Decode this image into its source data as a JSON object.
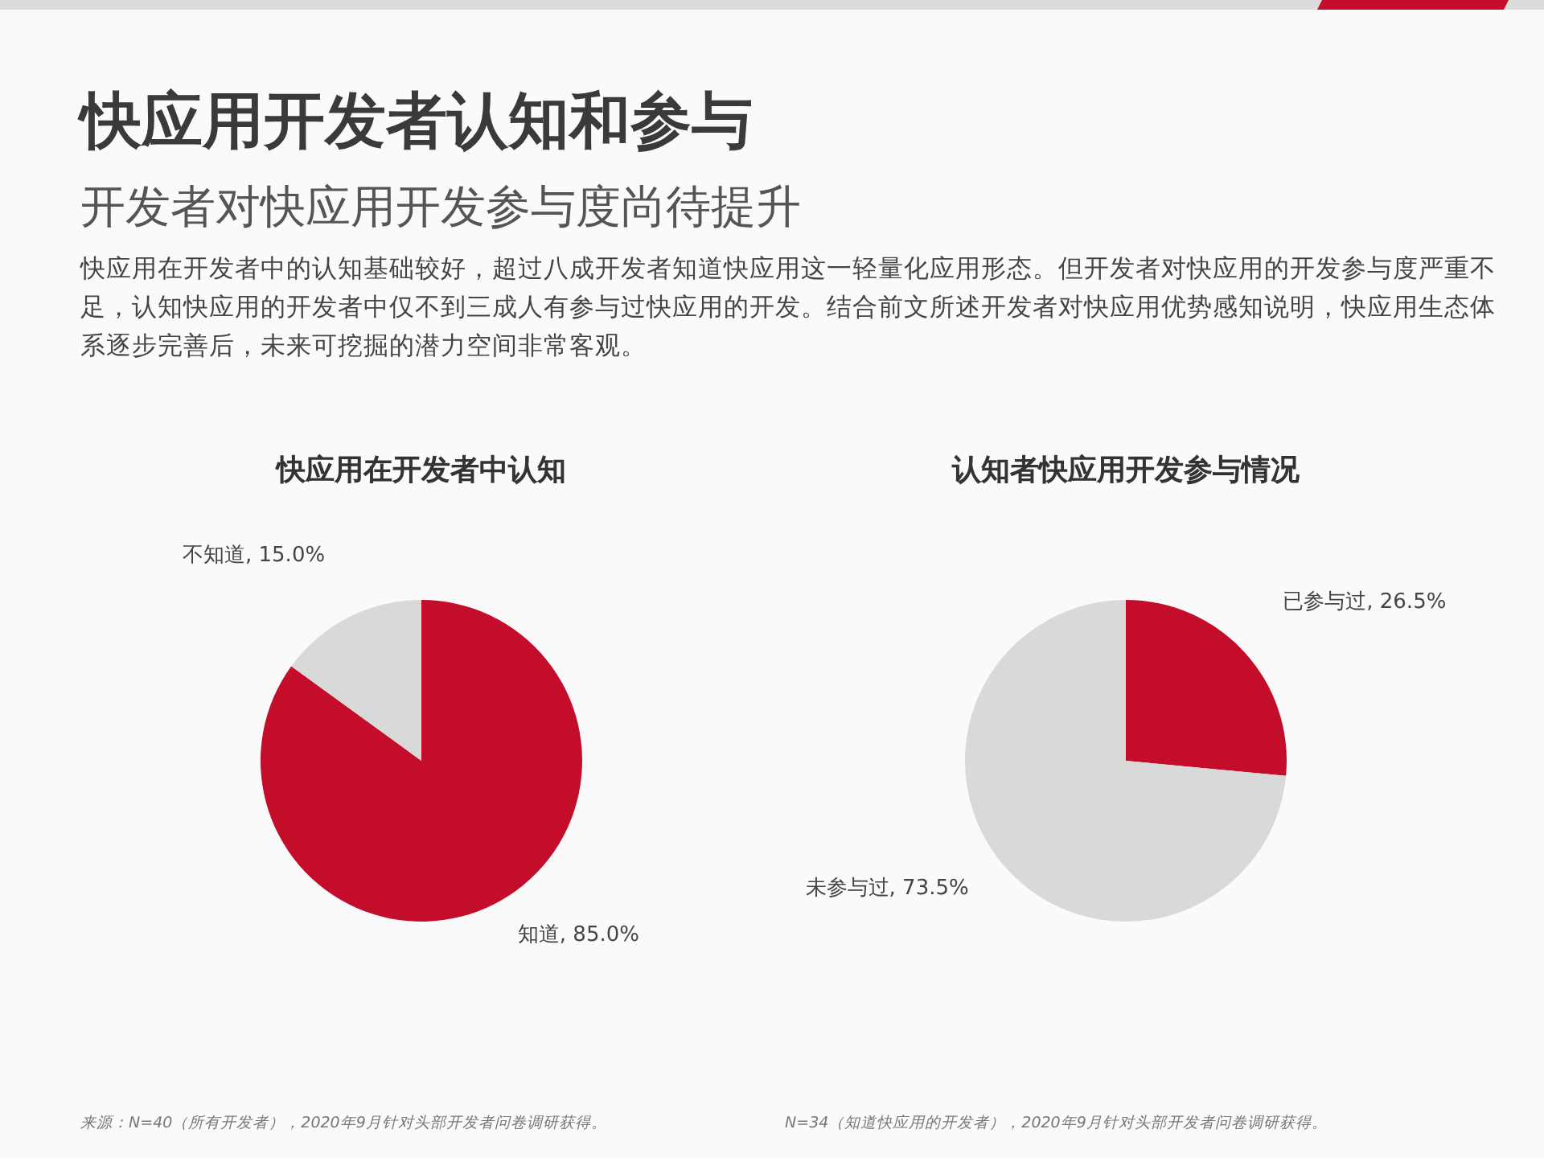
{
  "chart_data": [
    {
      "type": "other",
      "title": "快应用开发者认知和参与",
      "subtitle": "开发者对快应用开发参与度尚待提升",
      "annotations": [
        "快应用在开发者中的认知基础较好，超过八成开发者知道快应用这一轻量化应用形态。但开发者对快应用的开发参与度严重不足，认知快应用的开发者中仅不到三成人有参与过快应用的开发。结合前文所述开发者对快应用优势感知说明，快应用生态体系逐步完善后，未来可挖掘的潜力空间非常客观。"
      ]
    },
    {
      "type": "pie",
      "title": "快应用在开发者中认知",
      "categories": [
        "知道",
        "不知道"
      ],
      "values": [
        85.0,
        15.0
      ],
      "value_labels": [
        "85.0%",
        "15.0%"
      ],
      "colors": [
        "#c40d2b",
        "#d9d9d9"
      ],
      "annotations": [
        "来源：N=40（所有开发者），2020年9月针对头部开发者问卷调研获得。"
      ]
    },
    {
      "type": "pie",
      "title": "认知者快应用开发参与情况",
      "categories": [
        "已参与过",
        "未参与过"
      ],
      "values": [
        26.5,
        73.5
      ],
      "value_labels": [
        "26.5%",
        "73.5%"
      ],
      "colors": [
        "#c40d2b",
        "#d9d9d9"
      ],
      "annotations": [
        "N=34（知道快应用的开发者），2020年9月针对头部开发者问卷调研获得。"
      ]
    }
  ]
}
